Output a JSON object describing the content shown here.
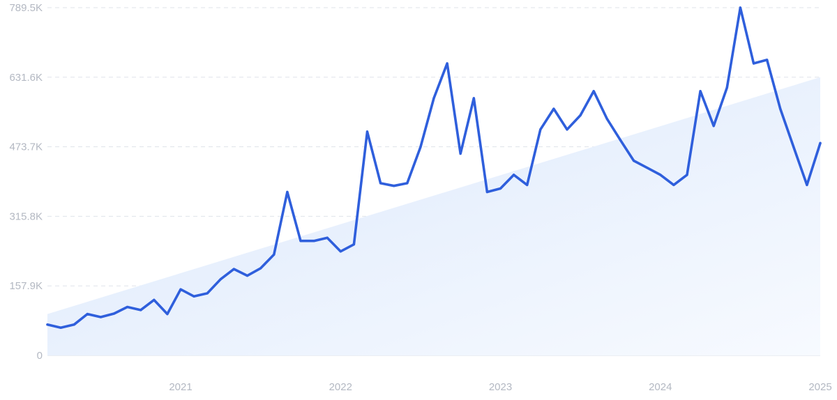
{
  "chart_data": {
    "type": "line",
    "y_ticks": [
      "0",
      "157.9K",
      "315.8K",
      "473.7K",
      "631.6K",
      "789.5K"
    ],
    "y_tick_values": [
      0,
      157900,
      315800,
      473700,
      631600,
      789500
    ],
    "x_ticks": [
      "2021",
      "2022",
      "2023",
      "2024",
      "2025"
    ],
    "x_tick_dates": [
      "2021-01",
      "2022-01",
      "2023-01",
      "2024-01",
      "2025-01"
    ],
    "ylim": [
      0,
      789500
    ],
    "xlim": [
      "2020-03",
      "2025-01"
    ],
    "grid": true,
    "series": [
      {
        "color": "#2f5fdc",
        "x": [
          "2020-03",
          "2020-04",
          "2020-05",
          "2020-06",
          "2020-07",
          "2020-08",
          "2020-09",
          "2020-10",
          "2020-11",
          "2020-12",
          "2021-01",
          "2021-02",
          "2021-03",
          "2021-04",
          "2021-05",
          "2021-06",
          "2021-07",
          "2021-08",
          "2021-09",
          "2021-10",
          "2021-11",
          "2021-12",
          "2022-01",
          "2022-02",
          "2022-03",
          "2022-04",
          "2022-05",
          "2022-06",
          "2022-07",
          "2022-08",
          "2022-09",
          "2022-10",
          "2022-11",
          "2022-12",
          "2023-01",
          "2023-02",
          "2023-03",
          "2023-04",
          "2023-05",
          "2023-06",
          "2023-07",
          "2023-08",
          "2023-09",
          "2023-10",
          "2023-11",
          "2023-12",
          "2024-01",
          "2024-02",
          "2024-03",
          "2024-04",
          "2024-05",
          "2024-06",
          "2024-07",
          "2024-08",
          "2024-09",
          "2024-10",
          "2024-11",
          "2024-12",
          "2025-01"
        ],
        "values": [
          70000,
          63000,
          70000,
          94000,
          87000,
          95000,
          110000,
          103000,
          126000,
          94000,
          150000,
          134000,
          141000,
          173000,
          196000,
          181000,
          198000,
          229000,
          371000,
          260000,
          260000,
          267000,
          236000,
          252000,
          508000,
          391000,
          385000,
          391000,
          473000,
          584000,
          663000,
          458000,
          584000,
          371000,
          379000,
          410000,
          387000,
          513000,
          560000,
          513000,
          545000,
          600000,
          537000,
          489000,
          442000,
          426000,
          410000,
          387000,
          410000,
          600000,
          521000,
          608000,
          789500,
          663000,
          671000,
          560000,
          473000,
          387000,
          482000
        ]
      }
    ],
    "trend": {
      "x": [
        "2020-03",
        "2025-01"
      ],
      "values": [
        94000,
        631600
      ],
      "color": "#e3edfb"
    }
  }
}
